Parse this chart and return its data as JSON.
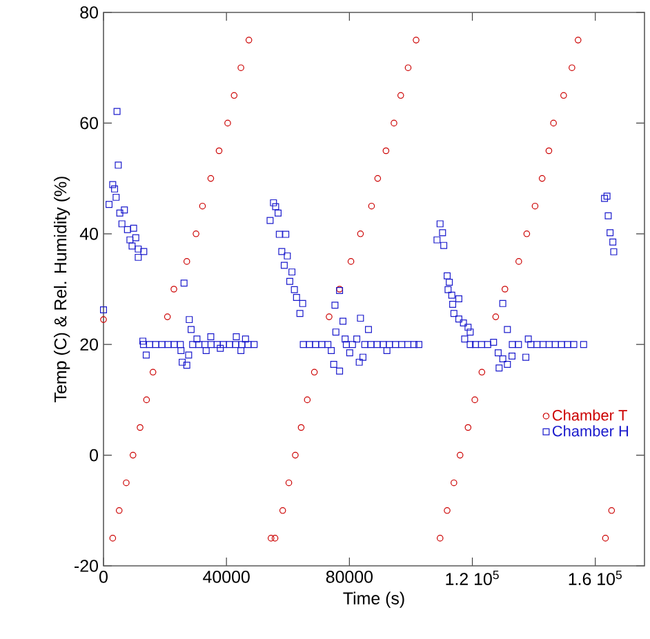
{
  "chart_data": {
    "type": "scatter",
    "xlabel": "Time (s)",
    "ylabel": "Temp (C) & Rel. Humidity (%)",
    "xlim": [
      0,
      176000
    ],
    "ylim": [
      -20,
      80
    ],
    "xticks": [
      0,
      40000,
      80000,
      {
        "value": 120000,
        "label": "1.2 10$^{5}$"
      },
      {
        "value": 160000,
        "label": "1.6 10$^{5}$"
      }
    ],
    "yticks": [
      -20,
      0,
      20,
      40,
      60,
      80
    ],
    "grid": false,
    "legend": "bottom right",
    "series": [
      {
        "name": "Chamber T",
        "color": "#cc0000",
        "marker": "circle",
        "x": [
          0,
          3000,
          5100,
          7400,
          9600,
          11900,
          14000,
          16100,
          20800,
          22900,
          27100,
          30100,
          32200,
          34900,
          37600,
          40400,
          42500,
          44700,
          47300,
          54500,
          55800,
          58300,
          60300,
          62400,
          64300,
          66300,
          68600,
          73400,
          76800,
          80500,
          83600,
          87200,
          89200,
          91900,
          94500,
          96700,
          99100,
          101700,
          109500,
          111800,
          114000,
          116000,
          118600,
          120800,
          123100,
          127600,
          130600,
          135100,
          137700,
          140400,
          142700,
          144900,
          146400,
          149700,
          152400,
          154400,
          163300,
          165300
        ],
        "values": [
          24.5,
          -15,
          -10,
          -5,
          0,
          5,
          10,
          15,
          25,
          30,
          35,
          40,
          45,
          50,
          55,
          60,
          65,
          70,
          75,
          -15,
          -15,
          -10,
          -5,
          0,
          5,
          10,
          15,
          25,
          30,
          35,
          40,
          45,
          50,
          55,
          60,
          65,
          70,
          75,
          -15,
          -10,
          -5,
          0,
          5,
          10,
          15,
          25,
          30,
          35,
          40,
          45,
          50,
          55,
          60,
          65,
          70,
          75,
          -15,
          -10
        ]
      },
      {
        "name": "Chamber H",
        "color": "#1a1acc",
        "marker": "square",
        "x": [
          0,
          1800,
          3000,
          3600,
          4100,
          4400,
          4800,
          5300,
          6000,
          6800,
          7800,
          8600,
          9300,
          9800,
          10500,
          11300,
          11300,
          13100,
          12800,
          13900,
          13000,
          15000,
          17000,
          19000,
          21000,
          23000,
          25000,
          25200,
          25600,
          26200,
          27100,
          27700,
          27900,
          28500,
          29000,
          30400,
          31000,
          33000,
          33400,
          34900,
          35000,
          37000,
          38000,
          39000,
          41000,
          43000,
          43200,
          44700,
          45000,
          46200,
          47000,
          49000,
          54200,
          55300,
          56000,
          56800,
          57200,
          58000,
          58800,
          59300,
          59800,
          60600,
          61300,
          62100,
          62800,
          63900,
          64800,
          65000,
          67000,
          69000,
          71000,
          73000,
          74100,
          74900,
          75300,
          75600,
          76800,
          76800,
          77900,
          78600,
          79000,
          80100,
          81000,
          82400,
          83200,
          83600,
          84400,
          85000,
          86200,
          87000,
          89000,
          91000,
          92200,
          93000,
          95000,
          97000,
          99000,
          101000,
          102600,
          108500,
          109500,
          110300,
          110700,
          111800,
          112100,
          112500,
          113300,
          113600,
          114000,
          115600,
          115600,
          117100,
          117500,
          118600,
          119300,
          119300,
          121000,
          123000,
          125000,
          126900,
          128400,
          128700,
          129900,
          129900,
          131400,
          131400,
          132900,
          133000,
          135000,
          137400,
          138200,
          139000,
          141000,
          143000,
          145000,
          147000,
          149000,
          151000,
          153000,
          156200,
          163000,
          163800,
          164200,
          164800,
          165700,
          166000
        ],
        "values": [
          26.25,
          45.3,
          48.9,
          48.1,
          46.6,
          62.1,
          52.4,
          43.75,
          41.8,
          44.3,
          40.75,
          38.9,
          37.8,
          41,
          39.3,
          37.25,
          35.75,
          36.8,
          20.6,
          18.1,
          20,
          20,
          20,
          20,
          20,
          20,
          20,
          18.9,
          16.8,
          31.1,
          16.25,
          18.1,
          24.5,
          22.7,
          20,
          21,
          20,
          20,
          18.9,
          21.4,
          20,
          20,
          19.3,
          20,
          20,
          20,
          21.4,
          18.9,
          20,
          21,
          20,
          20,
          42.4,
          45.6,
          44.9,
          43.75,
          39.9,
          36.8,
          34.3,
          39.9,
          36,
          31.4,
          33.1,
          29.9,
          28.5,
          25.6,
          27.4,
          20,
          20,
          20,
          20,
          20,
          18.9,
          16.4,
          27.1,
          22.25,
          15.2,
          29.75,
          24.2,
          21,
          20,
          18.5,
          20,
          21,
          16.8,
          24.75,
          17.7,
          20,
          22.7,
          20,
          20,
          20,
          18.9,
          20,
          20,
          20,
          20,
          20,
          20,
          38.9,
          41.8,
          40.2,
          37.9,
          32.4,
          29.9,
          31.25,
          28.9,
          27.25,
          25.6,
          28.25,
          24.6,
          23.9,
          21,
          23.1,
          22.25,
          20,
          20,
          20,
          20,
          20.4,
          18.5,
          15.75,
          17.4,
          27.4,
          22.7,
          16.4,
          17.9,
          20,
          20,
          17.7,
          21,
          20,
          20,
          20,
          20,
          20,
          20,
          20,
          20,
          20,
          46.4,
          46.8,
          43.25,
          40.2,
          38.5,
          36.75
        ]
      }
    ]
  }
}
